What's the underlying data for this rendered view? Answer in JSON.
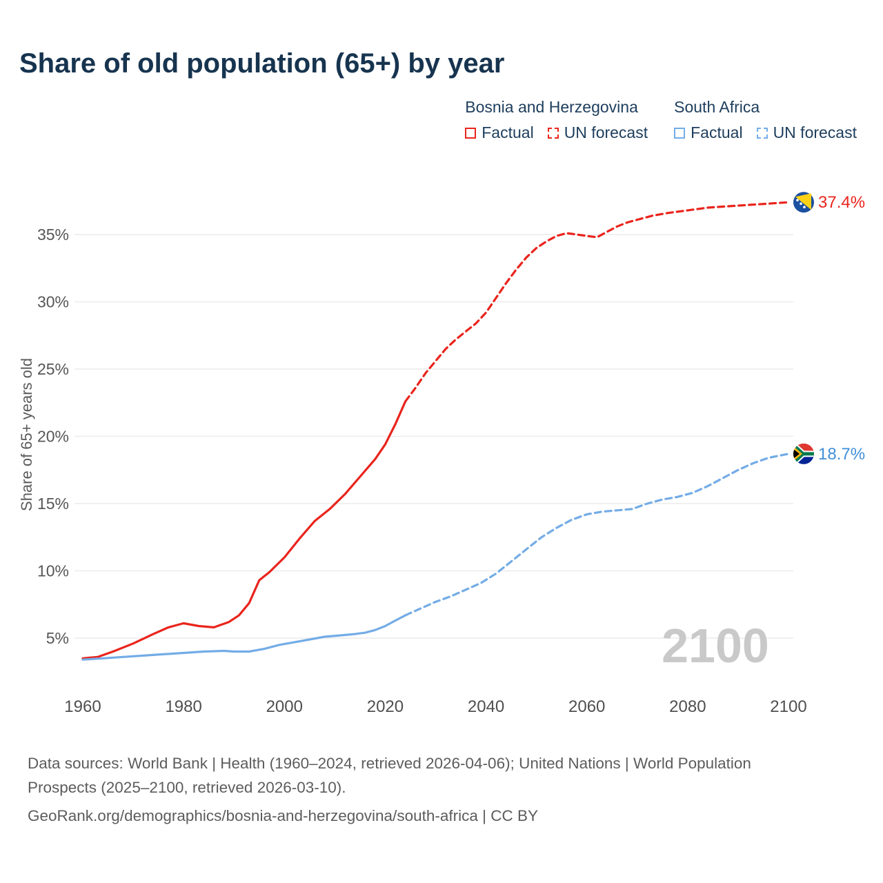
{
  "title": "Share of old population (65+) by year",
  "legend": {
    "groups": [
      {
        "name": "Bosnia and Herzegovina",
        "color": "#e9241c",
        "items": [
          {
            "label": "Factual",
            "style": "solid"
          },
          {
            "label": "UN forecast",
            "style": "dashed"
          }
        ]
      },
      {
        "name": "South Africa",
        "color": "#73ace6",
        "items": [
          {
            "label": "Factual",
            "style": "solid"
          },
          {
            "label": "UN forecast",
            "style": "dashed"
          }
        ]
      }
    ]
  },
  "chart_data": {
    "type": "line",
    "title": "Share of old population (65+) by year",
    "xlabel": "",
    "ylabel": "Share of 65+ years old",
    "xlim": [
      1960,
      2100
    ],
    "ylim": [
      0,
      40
    ],
    "x_ticks": [
      1960,
      1980,
      2000,
      2020,
      2040,
      2060,
      2080,
      2100
    ],
    "y_ticks": [
      5,
      10,
      15,
      20,
      25,
      30,
      35
    ],
    "grid": "horizontal",
    "watermark": "2100",
    "series": [
      {
        "name": "Bosnia and Herzegovina — Factual",
        "color": "#e9241c",
        "dashed": false,
        "points": [
          [
            1960,
            3.5
          ],
          [
            1963,
            3.6
          ],
          [
            1966,
            4.0
          ],
          [
            1970,
            4.6
          ],
          [
            1974,
            5.3
          ],
          [
            1977,
            5.8
          ],
          [
            1980,
            6.1
          ],
          [
            1983,
            5.9
          ],
          [
            1986,
            5.8
          ],
          [
            1989,
            6.2
          ],
          [
            1991,
            6.7
          ],
          [
            1993,
            7.6
          ],
          [
            1995,
            9.3
          ],
          [
            1997,
            9.9
          ],
          [
            2000,
            11.0
          ],
          [
            2003,
            12.4
          ],
          [
            2006,
            13.7
          ],
          [
            2009,
            14.6
          ],
          [
            2012,
            15.7
          ],
          [
            2015,
            17.0
          ],
          [
            2018,
            18.3
          ],
          [
            2020,
            19.4
          ],
          [
            2022,
            20.9
          ],
          [
            2024,
            22.6
          ]
        ]
      },
      {
        "name": "Bosnia and Herzegovina — UN forecast",
        "color": "#e9241c",
        "dashed": true,
        "points": [
          [
            2024,
            22.6
          ],
          [
            2026,
            23.6
          ],
          [
            2028,
            24.7
          ],
          [
            2030,
            25.6
          ],
          [
            2032,
            26.5
          ],
          [
            2034,
            27.2
          ],
          [
            2036,
            27.8
          ],
          [
            2038,
            28.4
          ],
          [
            2040,
            29.2
          ],
          [
            2042,
            30.3
          ],
          [
            2044,
            31.4
          ],
          [
            2046,
            32.4
          ],
          [
            2048,
            33.3
          ],
          [
            2050,
            34.0
          ],
          [
            2052,
            34.5
          ],
          [
            2054,
            34.9
          ],
          [
            2056,
            35.1
          ],
          [
            2058,
            35.0
          ],
          [
            2060,
            34.9
          ],
          [
            2062,
            34.8
          ],
          [
            2064,
            35.2
          ],
          [
            2066,
            35.6
          ],
          [
            2068,
            35.9
          ],
          [
            2070,
            36.1
          ],
          [
            2073,
            36.4
          ],
          [
            2076,
            36.6
          ],
          [
            2080,
            36.8
          ],
          [
            2084,
            37.0
          ],
          [
            2088,
            37.1
          ],
          [
            2092,
            37.2
          ],
          [
            2096,
            37.3
          ],
          [
            2100,
            37.4
          ]
        ]
      },
      {
        "name": "South Africa — Factual",
        "color": "#73ace6",
        "dashed": false,
        "points": [
          [
            1960,
            3.4
          ],
          [
            1964,
            3.5
          ],
          [
            1968,
            3.6
          ],
          [
            1972,
            3.7
          ],
          [
            1976,
            3.8
          ],
          [
            1980,
            3.9
          ],
          [
            1984,
            4.0
          ],
          [
            1988,
            4.05
          ],
          [
            1990,
            4.0
          ],
          [
            1993,
            4.0
          ],
          [
            1996,
            4.2
          ],
          [
            1999,
            4.5
          ],
          [
            2002,
            4.7
          ],
          [
            2005,
            4.9
          ],
          [
            2008,
            5.1
          ],
          [
            2011,
            5.2
          ],
          [
            2014,
            5.3
          ],
          [
            2016,
            5.4
          ],
          [
            2018,
            5.6
          ],
          [
            2020,
            5.9
          ],
          [
            2022,
            6.3
          ],
          [
            2024,
            6.7
          ]
        ]
      },
      {
        "name": "South Africa — UN forecast",
        "color": "#73ace6",
        "dashed": true,
        "points": [
          [
            2024,
            6.7
          ],
          [
            2027,
            7.2
          ],
          [
            2030,
            7.7
          ],
          [
            2033,
            8.1
          ],
          [
            2036,
            8.6
          ],
          [
            2039,
            9.1
          ],
          [
            2042,
            9.8
          ],
          [
            2045,
            10.7
          ],
          [
            2048,
            11.6
          ],
          [
            2051,
            12.5
          ],
          [
            2054,
            13.2
          ],
          [
            2057,
            13.8
          ],
          [
            2060,
            14.2
          ],
          [
            2063,
            14.4
          ],
          [
            2066,
            14.5
          ],
          [
            2069,
            14.6
          ],
          [
            2072,
            15.0
          ],
          [
            2075,
            15.3
          ],
          [
            2078,
            15.5
          ],
          [
            2081,
            15.8
          ],
          [
            2084,
            16.3
          ],
          [
            2087,
            16.9
          ],
          [
            2090,
            17.5
          ],
          [
            2093,
            18.0
          ],
          [
            2096,
            18.4
          ],
          [
            2100,
            18.7
          ]
        ]
      }
    ],
    "end_labels": [
      {
        "label": "37.4%",
        "value": 37.4,
        "color": "#e9241c",
        "flag": "bosnia-and-herzegovina"
      },
      {
        "label": "18.7%",
        "value": 18.7,
        "color": "#3f8fd9",
        "flag": "south-africa"
      }
    ]
  },
  "footer": {
    "sources": "Data sources: World Bank | Health (1960–2024, retrieved 2026-04-06); United Nations | World Population Prospects (2025–2100, retrieved 2026-03-10).",
    "attribution": "GeoRank.org/demographics/bosnia-and-herzegovina/south-africa | CC BY"
  }
}
